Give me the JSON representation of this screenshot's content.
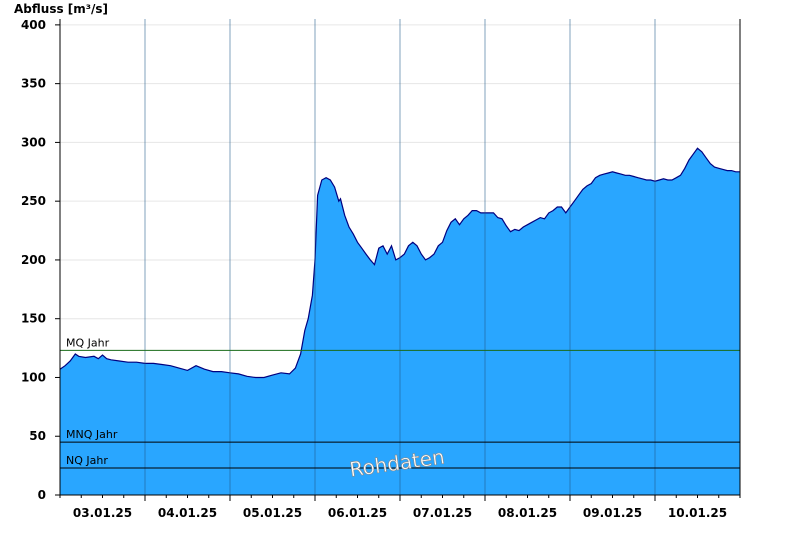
{
  "chart_data": {
    "type": "area",
    "title": "Abfluss [m³/s]",
    "xlabel": "",
    "ylabel": "Abfluss [m³/s]",
    "ylim": [
      0,
      405
    ],
    "y_ticks": [
      0,
      50,
      100,
      150,
      200,
      250,
      300,
      350,
      400
    ],
    "x_range": [
      2.5,
      10.5
    ],
    "x_tick_labels": [
      "03.01.25",
      "04.01.25",
      "05.01.25",
      "06.01.25",
      "07.01.25",
      "08.01.25",
      "09.01.25",
      "10.01.25"
    ],
    "x_tick_positions": [
      3,
      4,
      5,
      6,
      7,
      8,
      9,
      10
    ],
    "day_boundaries": [
      3.5,
      4.5,
      5.5,
      6.5,
      7.5,
      8.5,
      9.5
    ],
    "grid": "horizontal",
    "colors": {
      "area": "#29a6ff",
      "line": "#00007f",
      "mq": "#1a6b1a",
      "mnq": "#000000",
      "nq": "#000000"
    },
    "reference_lines": [
      {
        "label": "MQ Jahr",
        "value": 123
      },
      {
        "label": "MNQ Jahr",
        "value": 45
      },
      {
        "label": "NQ Jahr",
        "value": 23
      }
    ],
    "watermark": "Rohdaten",
    "series": [
      {
        "x": [
          2.5,
          2.56,
          2.62,
          2.68,
          2.72,
          2.8,
          2.9,
          2.95,
          3.0,
          3.05,
          3.1,
          3.2,
          3.3,
          3.4,
          3.5,
          3.6,
          3.7,
          3.8,
          3.9,
          4.0,
          4.1,
          4.2,
          4.3,
          4.4,
          4.5,
          4.6,
          4.7,
          4.8,
          4.9,
          5.0,
          5.1,
          5.2,
          5.27,
          5.33,
          5.38,
          5.42,
          5.47,
          5.5,
          5.53,
          5.58,
          5.63,
          5.68,
          5.73,
          5.78,
          5.8,
          5.85,
          5.9,
          5.95,
          6.0,
          6.05,
          6.1,
          6.15,
          6.2,
          6.25,
          6.3,
          6.35,
          6.4,
          6.45,
          6.5,
          6.55,
          6.6,
          6.65,
          6.7,
          6.75,
          6.8,
          6.85,
          6.9,
          6.95,
          7.0,
          7.05,
          7.1,
          7.15,
          7.2,
          7.25,
          7.3,
          7.35,
          7.4,
          7.45,
          7.5,
          7.55,
          7.6,
          7.65,
          7.7,
          7.75,
          7.8,
          7.85,
          7.9,
          7.95,
          8.0,
          8.05,
          8.1,
          8.15,
          8.2,
          8.25,
          8.3,
          8.35,
          8.4,
          8.45,
          8.5,
          8.55,
          8.6,
          8.65,
          8.7,
          8.75,
          8.8,
          8.85,
          8.9,
          8.95,
          9.0,
          9.05,
          9.1,
          9.15,
          9.2,
          9.25,
          9.3,
          9.35,
          9.4,
          9.45,
          9.5,
          9.55,
          9.6,
          9.65,
          9.7,
          9.75,
          9.8,
          9.85,
          9.9,
          9.95,
          10.0,
          10.05,
          10.1,
          10.15,
          10.2,
          10.25,
          10.3,
          10.35,
          10.4,
          10.45,
          10.5
        ],
        "values": [
          107,
          110,
          114,
          120,
          118,
          117,
          118,
          116,
          119,
          116,
          115,
          114,
          113,
          113,
          112,
          112,
          111,
          110,
          108,
          106,
          110,
          107,
          105,
          105,
          104,
          103,
          101,
          100,
          100,
          102,
          104,
          103,
          108,
          120,
          140,
          150,
          170,
          200,
          255,
          268,
          270,
          268,
          262,
          250,
          252,
          238,
          228,
          222,
          215,
          210,
          205,
          200,
          196,
          210,
          212,
          205,
          212,
          200,
          202,
          205,
          212,
          215,
          212,
          205,
          200,
          202,
          205,
          212,
          215,
          225,
          232,
          235,
          230,
          235,
          238,
          242,
          242,
          240,
          240,
          240,
          240,
          236,
          235,
          229,
          224,
          226,
          225,
          228,
          230,
          232,
          234,
          236,
          235,
          240,
          242,
          245,
          245,
          240,
          245,
          250,
          255,
          260,
          263,
          265,
          270,
          272,
          273,
          274,
          275,
          274,
          273,
          272,
          272,
          271,
          270,
          269,
          268,
          268,
          267,
          268,
          269,
          268,
          268,
          270,
          272,
          278,
          285,
          290,
          295,
          292,
          287,
          282,
          279,
          278,
          277,
          276,
          276,
          275,
          275
        ]
      }
    ]
  }
}
